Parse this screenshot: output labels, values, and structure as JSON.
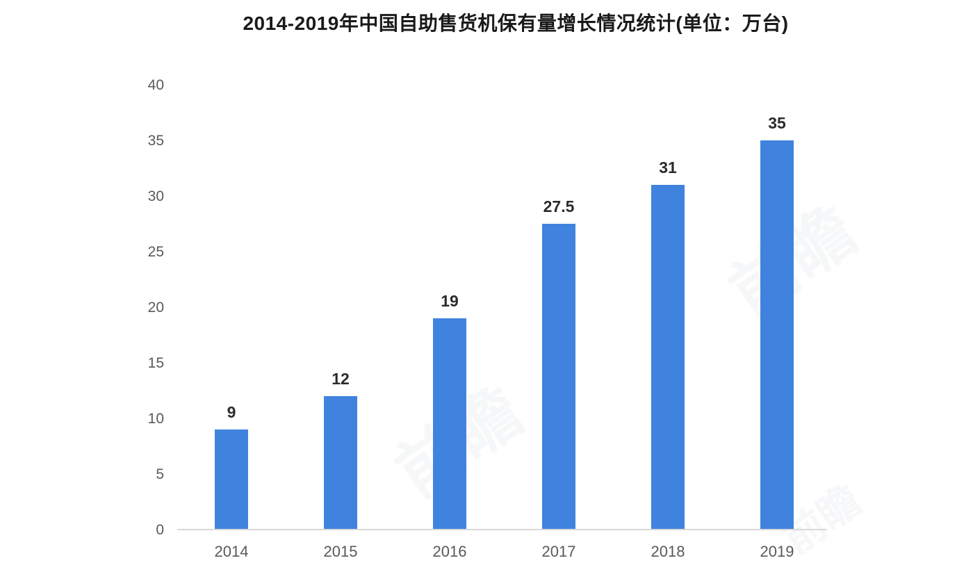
{
  "chart_data": {
    "type": "bar",
    "title": "2014-2019年中国自助售货机保有量增长情况统计(单位：万台)",
    "categories": [
      "2014",
      "2015",
      "2016",
      "2017",
      "2018",
      "2019"
    ],
    "values": [
      9,
      12,
      19,
      27.5,
      31,
      35
    ],
    "data_labels": [
      "9",
      "12",
      "19",
      "27.5",
      "31",
      "35"
    ],
    "xlabel": "",
    "ylabel": "",
    "ylim": [
      0,
      40
    ],
    "y_ticks": [
      0,
      5,
      10,
      15,
      20,
      25,
      30,
      35,
      40
    ],
    "grid": false,
    "legend_position": "none",
    "colors": {
      "bar": "#4083DF",
      "axis_line": "#d9d9d9",
      "tick_label": "#595959",
      "data_label": "#2b2b2b",
      "title": "#1a1a1a",
      "background": "#ffffff"
    }
  },
  "watermark": {
    "text": "前瞻"
  }
}
